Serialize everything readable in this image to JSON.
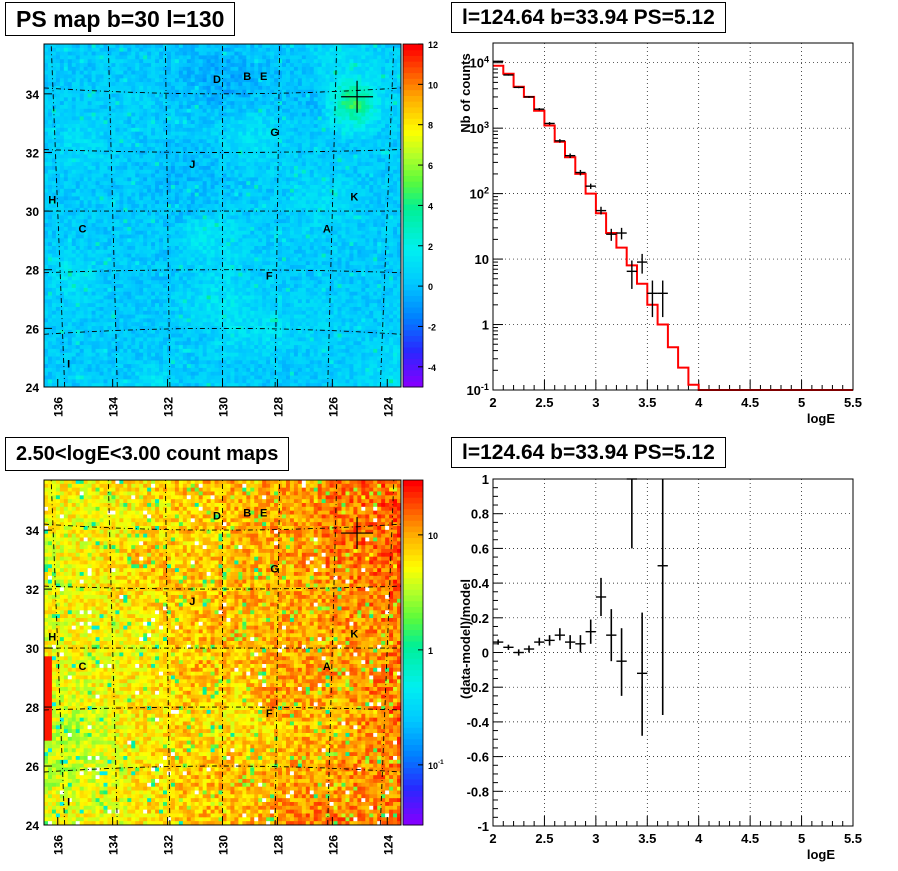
{
  "chart_data": [
    {
      "type": "heatmap",
      "title": "PS map b=30 l=130",
      "x_ticks": [
        136,
        134,
        132,
        130,
        128,
        126,
        124
      ],
      "y_ticks": [
        24,
        26,
        28,
        30,
        32,
        34
      ],
      "xlim": [
        136.5,
        123.5
      ],
      "ylim": [
        24,
        35.7
      ],
      "colorbar": {
        "range": [
          -5,
          12
        ],
        "ticks": [
          -4,
          -2,
          0,
          2,
          4,
          6,
          8,
          10,
          12
        ]
      },
      "sources": [
        {
          "label": "D",
          "l": 130.2,
          "b": 34.5
        },
        {
          "label": "B",
          "l": 129.1,
          "b": 34.6
        },
        {
          "label": "E",
          "l": 128.5,
          "b": 34.6
        },
        {
          "label": "G",
          "l": 128.1,
          "b": 32.7
        },
        {
          "label": "J",
          "l": 131.1,
          "b": 31.6
        },
        {
          "label": "H",
          "l": 136.2,
          "b": 30.4
        },
        {
          "label": "K",
          "l": 125.2,
          "b": 30.5
        },
        {
          "label": "C",
          "l": 135.1,
          "b": 29.4
        },
        {
          "label": "A",
          "l": 126.2,
          "b": 29.4
        },
        {
          "label": "F",
          "l": 128.3,
          "b": 27.8
        },
        {
          "label": "I",
          "l": 135.6,
          "b": 24.8
        }
      ],
      "marker": {
        "l": 125.1,
        "b": 33.9
      }
    },
    {
      "type": "line",
      "title": "l=124.64 b=33.94 PS=5.12",
      "xlabel": "logE",
      "ylabel": "Nb of counts",
      "xlim": [
        2,
        5.5
      ],
      "ylim": [
        0.1,
        20000
      ],
      "yscale": "log",
      "x_ticks": [
        "2",
        "2.5",
        "3",
        "3.5",
        "4",
        "4.5",
        "5",
        "5.5"
      ],
      "y_ticks": [
        "10^-1",
        "1",
        "10",
        "10^2",
        "10^3",
        "10^4"
      ],
      "grid": true,
      "series": [
        {
          "type": "step",
          "color": "#ff0000",
          "bin_edges": [
            2.0,
            2.1,
            2.2,
            2.3,
            2.4,
            2.5,
            2.6,
            2.7,
            2.8,
            2.9,
            3.0,
            3.1,
            3.2,
            3.3,
            3.4,
            3.5,
            3.6,
            3.7,
            3.8,
            3.9,
            4.0,
            4.1,
            4.2,
            5.5
          ],
          "values": [
            9000,
            6800,
            4300,
            3000,
            1850,
            1100,
            620,
            360,
            200,
            100,
            50,
            25,
            15,
            8,
            4.2,
            2.0,
            1.0,
            0.45,
            0.22,
            0.12,
            0.08,
            0.08,
            0.08
          ]
        },
        {
          "type": "errorbar",
          "color": "#000000",
          "points": [
            {
              "x": 2.05,
              "y": 10500,
              "ylo": 10300,
              "yhi": 10700
            },
            {
              "x": 2.15,
              "y": 6500,
              "ylo": 6350,
              "yhi": 6650
            },
            {
              "x": 2.25,
              "y": 4200,
              "ylo": 4080,
              "yhi": 4320
            },
            {
              "x": 2.35,
              "y": 3000,
              "ylo": 2900,
              "yhi": 3100
            },
            {
              "x": 2.45,
              "y": 1950,
              "ylo": 1870,
              "yhi": 2030
            },
            {
              "x": 2.55,
              "y": 1180,
              "ylo": 1120,
              "yhi": 1240
            },
            {
              "x": 2.65,
              "y": 640,
              "ylo": 600,
              "yhi": 680
            },
            {
              "x": 2.75,
              "y": 380,
              "ylo": 350,
              "yhi": 410
            },
            {
              "x": 2.85,
              "y": 210,
              "ylo": 190,
              "yhi": 230
            },
            {
              "x": 2.95,
              "y": 130,
              "ylo": 118,
              "yhi": 142
            },
            {
              "x": 3.05,
              "y": 55,
              "ylo": 48,
              "yhi": 63
            },
            {
              "x": 3.15,
              "y": 24,
              "ylo": 19,
              "yhi": 29
            },
            {
              "x": 3.25,
              "y": 25,
              "ylo": 20,
              "yhi": 30
            },
            {
              "x": 3.35,
              "y": 6.5,
              "ylo": 3.5,
              "yhi": 9.5
            },
            {
              "x": 3.45,
              "y": 9.0,
              "ylo": 6.0,
              "yhi": 12.0
            },
            {
              "x": 3.55,
              "y": 3.0,
              "ylo": 1.3,
              "yhi": 4.7
            },
            {
              "x": 3.65,
              "y": 3.0,
              "ylo": 1.3,
              "yhi": 4.7
            }
          ]
        }
      ]
    },
    {
      "type": "heatmap",
      "title": "2.50<logE<3.00 count maps",
      "x_ticks": [
        136,
        134,
        132,
        130,
        128,
        126,
        124
      ],
      "y_ticks": [
        24,
        26,
        28,
        30,
        32,
        34
      ],
      "xlim": [
        136.5,
        123.5
      ],
      "ylim": [
        24,
        35.7
      ],
      "colorbar": {
        "scale": "log",
        "range": [
          0.03,
          30
        ],
        "ticks": [
          "10^-1",
          "1",
          "10"
        ]
      },
      "sources": [
        {
          "label": "D",
          "l": 130.2,
          "b": 34.5
        },
        {
          "label": "B",
          "l": 129.1,
          "b": 34.6
        },
        {
          "label": "E",
          "l": 128.5,
          "b": 34.6
        },
        {
          "label": "G",
          "l": 128.1,
          "b": 32.7
        },
        {
          "label": "J",
          "l": 131.1,
          "b": 31.6
        },
        {
          "label": "H",
          "l": 136.2,
          "b": 30.4
        },
        {
          "label": "K",
          "l": 125.2,
          "b": 30.5
        },
        {
          "label": "C",
          "l": 135.1,
          "b": 29.4
        },
        {
          "label": "A",
          "l": 126.2,
          "b": 29.4
        },
        {
          "label": "F",
          "l": 128.3,
          "b": 27.8
        },
        {
          "label": "I",
          "l": 135.6,
          "b": 24.8
        }
      ],
      "marker": {
        "l": 125.1,
        "b": 33.9
      }
    },
    {
      "type": "scatter",
      "title": "l=124.64 b=33.94 PS=5.12",
      "xlabel": "logE",
      "ylabel": "(data-model)/model",
      "xlim": [
        2,
        5.5
      ],
      "ylim": [
        -1,
        1
      ],
      "x_ticks": [
        "2",
        "2.5",
        "3",
        "3.5",
        "4",
        "4.5",
        "5",
        "5.5"
      ],
      "y_ticks": [
        "-1",
        "-0.8",
        "-0.6",
        "-0.4",
        "-0.2",
        "0",
        "0.2",
        "0.4",
        "0.6",
        "0.8",
        "1"
      ],
      "grid": true,
      "series": [
        {
          "type": "errorbar",
          "color": "#000000",
          "points": [
            {
              "x": 2.05,
              "y": 0.06,
              "ylo": 0.045,
              "yhi": 0.075
            },
            {
              "x": 2.15,
              "y": 0.03,
              "ylo": 0.015,
              "yhi": 0.045
            },
            {
              "x": 2.25,
              "y": 0.0,
              "ylo": -0.018,
              "yhi": 0.018
            },
            {
              "x": 2.35,
              "y": 0.02,
              "ylo": 0.0,
              "yhi": 0.04
            },
            {
              "x": 2.45,
              "y": 0.06,
              "ylo": 0.04,
              "yhi": 0.085
            },
            {
              "x": 2.55,
              "y": 0.07,
              "ylo": 0.04,
              "yhi": 0.1
            },
            {
              "x": 2.65,
              "y": 0.1,
              "ylo": 0.07,
              "yhi": 0.14
            },
            {
              "x": 2.75,
              "y": 0.06,
              "ylo": 0.02,
              "yhi": 0.1
            },
            {
              "x": 2.85,
              "y": 0.05,
              "ylo": 0.0,
              "yhi": 0.1
            },
            {
              "x": 2.95,
              "y": 0.12,
              "ylo": 0.05,
              "yhi": 0.19
            },
            {
              "x": 3.05,
              "y": 0.32,
              "ylo": 0.21,
              "yhi": 0.43
            },
            {
              "x": 3.15,
              "y": 0.1,
              "ylo": -0.05,
              "yhi": 0.25
            },
            {
              "x": 3.25,
              "y": -0.05,
              "ylo": -0.25,
              "yhi": 0.14
            },
            {
              "x": 3.35,
              "y": 1.0,
              "ylo": 0.6,
              "yhi": 1.0
            },
            {
              "x": 3.45,
              "y": -0.12,
              "ylo": -0.48,
              "yhi": 0.23
            },
            {
              "x": 3.65,
              "y": 0.5,
              "ylo": -0.36,
              "yhi": 1.0
            }
          ]
        }
      ]
    }
  ]
}
